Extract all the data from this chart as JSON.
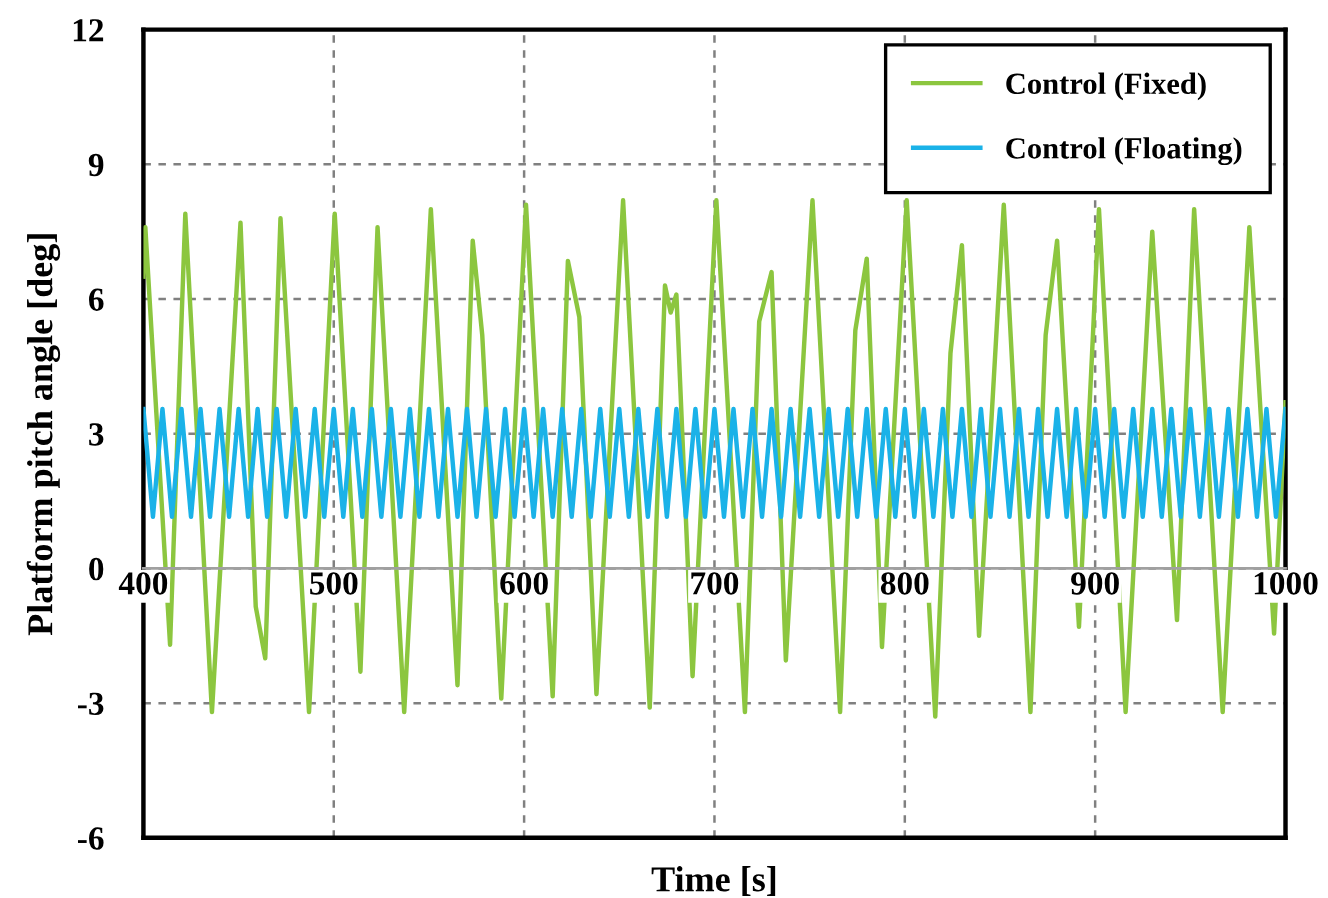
{
  "chart_data": {
    "type": "line",
    "xlabel": "Time [s]",
    "ylabel": "Platform pitch angle [deg]",
    "xlim": [
      400,
      1000
    ],
    "xticks": [
      400,
      500,
      600,
      700,
      800,
      900,
      1000
    ],
    "ylim": [
      -6,
      12
    ],
    "yticks": [
      -6,
      -3,
      0,
      3,
      6,
      9,
      12
    ],
    "grid": true,
    "legend": "top right",
    "line_style": "solid",
    "marker": "none",
    "series": [
      {
        "name": "Control (Fixed)",
        "color": "#8cc63f",
        "x": [
          400,
          401,
          414,
          422,
          436,
          451,
          459,
          464,
          472,
          487,
          500.5,
          514,
          523,
          537,
          551,
          565,
          573,
          578,
          588,
          601,
          615,
          623,
          629,
          638,
          652,
          666,
          674,
          677,
          680,
          688.5,
          701,
          716,
          723.5,
          730,
          737.5,
          751.5,
          766,
          774,
          780,
          788,
          801,
          816,
          824,
          830,
          839,
          852,
          866,
          874,
          880,
          891.5,
          902,
          916,
          930,
          943,
          952,
          967,
          981,
          994,
          1000
        ],
        "values": [
          6.5,
          7.6,
          -1.7,
          7.9,
          -3.2,
          7.7,
          -0.85,
          -2.0,
          7.8,
          -3.2,
          7.9,
          -2.3,
          7.6,
          -3.2,
          8.0,
          -2.6,
          7.3,
          5.2,
          -2.9,
          8.1,
          -2.85,
          6.85,
          5.6,
          -2.8,
          8.2,
          -3.1,
          6.3,
          5.7,
          6.1,
          -2.4,
          8.2,
          -3.2,
          5.5,
          6.6,
          -2.05,
          8.2,
          -3.2,
          5.3,
          6.9,
          -1.75,
          8.2,
          -3.3,
          4.8,
          7.2,
          -1.5,
          8.1,
          -3.2,
          5.2,
          7.3,
          -1.3,
          8.0,
          -3.2,
          7.5,
          -1.15,
          8.0,
          -3.2,
          7.6,
          -1.45,
          3.7
        ]
      },
      {
        "name": "Control (Floating)",
        "color": "#1ab2e8",
        "x": [
          400,
          405,
          410,
          415,
          420,
          425,
          430,
          435,
          440,
          445,
          450,
          455,
          460,
          465,
          470,
          475,
          480,
          485,
          490,
          495,
          500,
          505,
          510,
          515,
          520,
          525,
          530,
          535,
          540,
          545,
          550,
          555,
          560,
          565,
          570,
          575,
          580,
          585,
          590,
          595,
          600,
          605,
          610,
          615,
          620,
          625,
          630,
          635,
          640,
          645,
          650,
          655,
          660,
          665,
          670,
          675,
          680,
          685,
          690,
          695,
          700,
          705,
          710,
          715,
          720,
          725,
          730,
          735,
          740,
          745,
          750,
          755,
          760,
          765,
          770,
          775,
          780,
          785,
          790,
          795,
          800,
          805,
          810,
          815,
          820,
          825,
          830,
          835,
          840,
          845,
          850,
          855,
          860,
          865,
          870,
          875,
          880,
          885,
          890,
          895,
          900,
          905,
          910,
          915,
          920,
          925,
          930,
          935,
          940,
          945,
          950,
          955,
          960,
          965,
          970,
          975,
          980,
          985,
          990,
          995,
          1000
        ],
        "values": [
          3.55,
          1.15,
          3.55,
          1.15,
          3.55,
          1.15,
          3.55,
          1.15,
          3.55,
          1.15,
          3.55,
          1.15,
          3.55,
          1.15,
          3.55,
          1.15,
          3.55,
          1.15,
          3.55,
          1.15,
          3.55,
          1.15,
          3.55,
          1.15,
          3.55,
          1.15,
          3.55,
          1.15,
          3.55,
          1.15,
          3.55,
          1.15,
          3.55,
          1.15,
          3.55,
          1.15,
          3.55,
          1.15,
          3.55,
          1.15,
          3.55,
          1.15,
          3.55,
          1.15,
          3.55,
          1.15,
          3.55,
          1.15,
          3.55,
          1.15,
          3.55,
          1.15,
          3.55,
          1.15,
          3.55,
          1.15,
          3.55,
          1.15,
          3.55,
          1.15,
          3.55,
          1.15,
          3.55,
          1.15,
          3.55,
          1.15,
          3.55,
          1.15,
          3.55,
          1.15,
          3.55,
          1.15,
          3.55,
          1.15,
          3.55,
          1.15,
          3.55,
          1.15,
          3.55,
          1.15,
          3.55,
          1.15,
          3.55,
          1.15,
          3.55,
          1.15,
          3.55,
          1.15,
          3.55,
          1.15,
          3.55,
          1.15,
          3.55,
          1.15,
          3.55,
          1.15,
          3.55,
          1.15,
          3.55,
          1.15,
          3.55,
          1.15,
          3.55,
          1.15,
          3.55,
          1.15,
          3.55,
          1.15,
          3.55,
          1.15,
          3.55,
          1.15,
          3.55,
          1.15,
          3.55,
          1.15,
          3.55,
          1.15,
          3.55,
          1.15,
          3.55
        ]
      }
    ]
  }
}
